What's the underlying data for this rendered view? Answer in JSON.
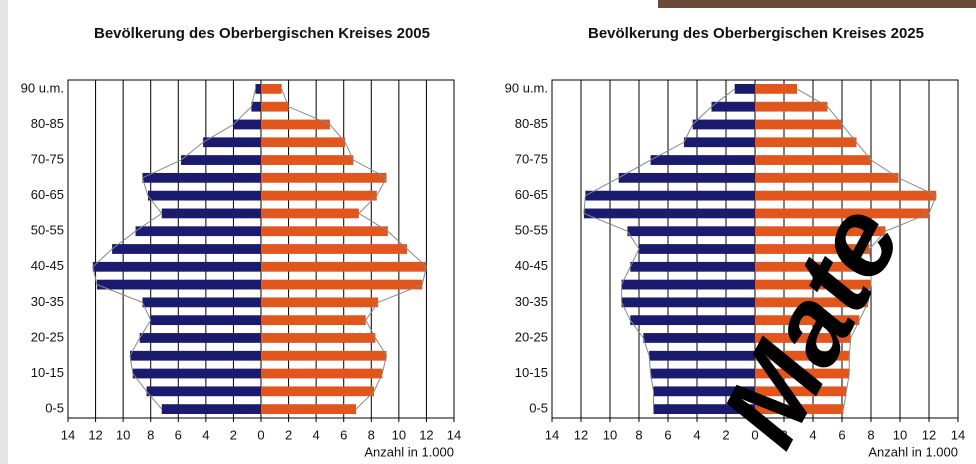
{
  "chart_data": [
    {
      "type": "pyramid",
      "title": "Bevölkerung des Oberbergischen Kreises 2005",
      "x_label": "Anzahl in 1.000",
      "categories": [
        "0-5",
        null,
        "10-15",
        null,
        "20-25",
        null,
        "30-35",
        null,
        "40-45",
        null,
        "50-55",
        null,
        "60-65",
        null,
        "70-75",
        null,
        "80-85",
        null,
        "90 u.m."
      ],
      "series": [
        {
          "color": "#1a1a6e",
          "values": [
            7.2,
            8.3,
            9.3,
            9.5,
            8.8,
            8.0,
            8.6,
            11.9,
            12.2,
            10.8,
            9.1,
            7.2,
            8.2,
            8.6,
            5.8,
            4.2,
            2.0,
            0.7,
            0.4
          ]
        },
        {
          "color": "#e0561c",
          "values": [
            6.9,
            8.2,
            8.8,
            9.1,
            8.3,
            7.6,
            8.5,
            11.7,
            12.0,
            10.6,
            9.2,
            7.1,
            8.4,
            9.1,
            6.7,
            6.1,
            5.0,
            2.0,
            1.5
          ]
        }
      ],
      "xlim": [
        -14,
        14
      ],
      "xticks": [
        {
          "value": -14,
          "label": "14"
        },
        {
          "value": -12,
          "label": "12"
        },
        {
          "value": -10,
          "label": "10"
        },
        {
          "value": -8,
          "label": "8"
        },
        {
          "value": -6,
          "label": "6"
        },
        {
          "value": -4,
          "label": "4"
        },
        {
          "value": -2,
          "label": "2"
        },
        0,
        2,
        4,
        6,
        8,
        10,
        12,
        14
      ],
      "grid": true
    },
    {
      "type": "pyramid",
      "title": "Bevölkerung des Oberbergischen Kreises 2025",
      "x_label": "Anzahl in 1.000",
      "categories": [
        "0-5",
        null,
        "10-15",
        null,
        "20-25",
        null,
        "30-35",
        null,
        "40-45",
        null,
        "50-55",
        null,
        "60-65",
        null,
        "70-75",
        null,
        "80-85",
        null,
        "90 u.m."
      ],
      "series": [
        {
          "color": "#1a1a6e",
          "values": [
            7.0,
            7.0,
            7.2,
            7.3,
            7.7,
            8.6,
            9.2,
            9.2,
            8.6,
            8.0,
            8.8,
            11.8,
            11.7,
            9.4,
            7.2,
            4.9,
            4.3,
            3.0,
            1.4
          ]
        },
        {
          "color": "#e0561c",
          "values": [
            6.1,
            6.3,
            6.5,
            6.5,
            6.6,
            7.2,
            7.8,
            8.0,
            8.0,
            7.9,
            9.0,
            12.0,
            12.5,
            9.9,
            8.0,
            7.0,
            6.0,
            5.0,
            2.9
          ]
        }
      ],
      "xlim": [
        -14,
        14
      ],
      "xticks": [
        {
          "value": -14,
          "label": "14"
        },
        {
          "value": -12,
          "label": "12"
        },
        {
          "value": -10,
          "label": "10"
        },
        {
          "value": -8,
          "label": "8"
        },
        {
          "value": -6,
          "label": "6"
        },
        {
          "value": -4,
          "label": "4"
        },
        {
          "value": -2,
          "label": "2"
        },
        0,
        2,
        4,
        6,
        8,
        10,
        12,
        14
      ],
      "grid": true
    }
  ],
  "watermark": "Mate"
}
